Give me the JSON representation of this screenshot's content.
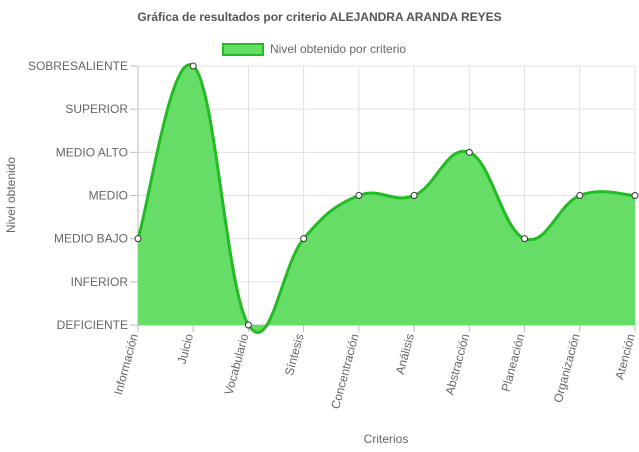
{
  "chart_data": {
    "type": "area",
    "title": "Gráfica de resultados por criterio ALEJANDRA ARANDA REYES",
    "xlabel": "Criterios",
    "ylabel": "Nivel obtenido",
    "legend": {
      "position": "top",
      "label": "Nivel obtenido por criterio"
    },
    "y_levels": [
      "DEFICIENTE",
      "INFERIOR",
      "MEDIO BAJO",
      "MEDIO",
      "MEDIO ALTO",
      "SUPERIOR",
      "SOBRESALIENTE"
    ],
    "ylim": [
      0,
      6
    ],
    "grid": true,
    "categories": [
      "Información",
      "Juicio",
      "Vocabulario",
      "Síntesis",
      "Concentración",
      "Análisis",
      "Abstracción",
      "Planeación",
      "Organización",
      "Atención"
    ],
    "series": [
      {
        "name": "Nivel obtenido por criterio",
        "values": [
          2,
          6,
          0,
          2,
          3,
          3,
          4,
          2,
          3,
          3
        ],
        "fill_color": "#66dd66",
        "line_color": "#22bb22"
      }
    ]
  }
}
